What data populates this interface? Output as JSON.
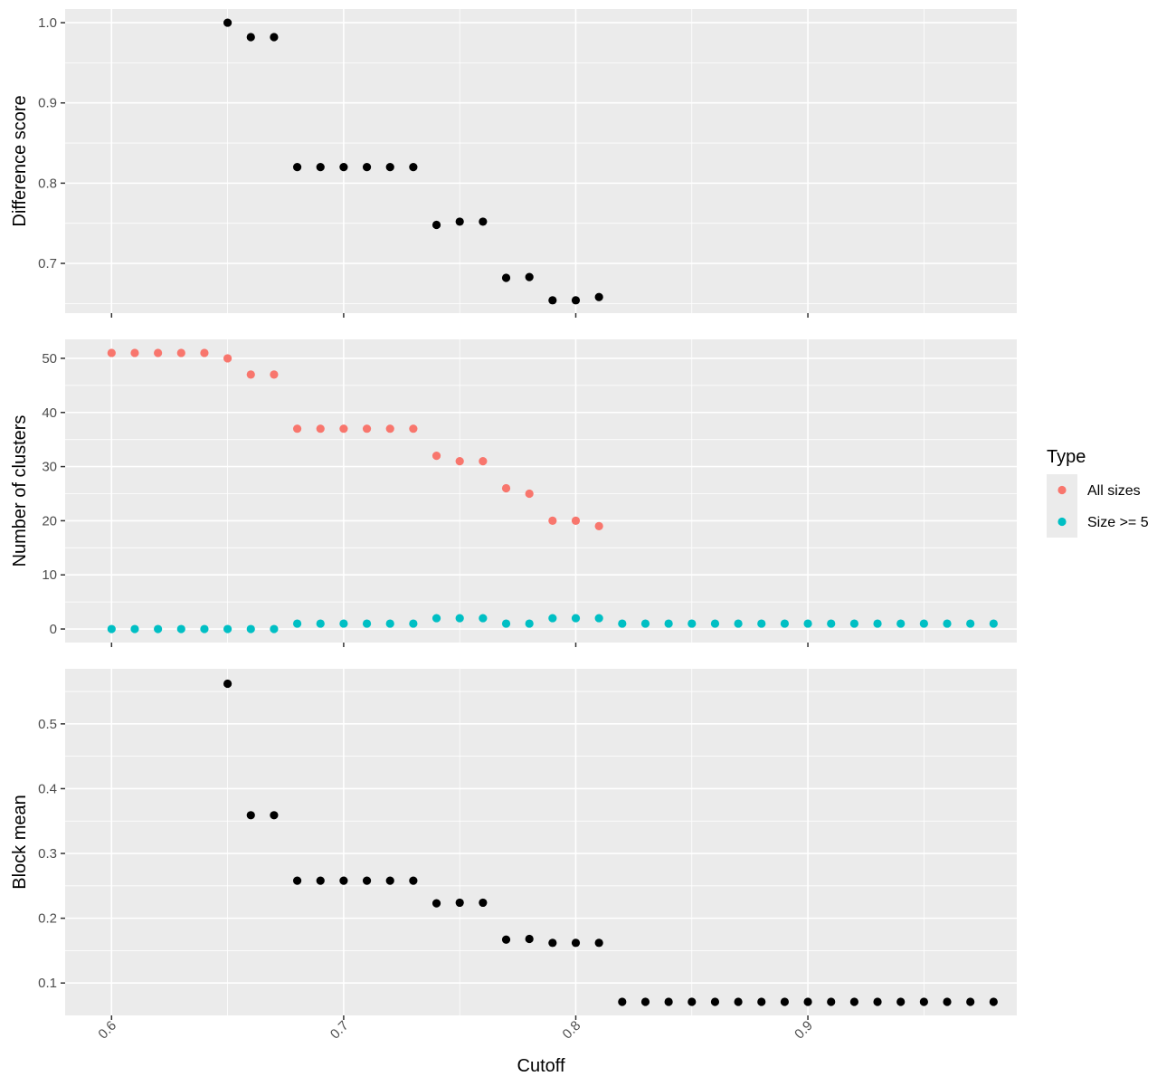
{
  "chart_data": [
    {
      "type": "scatter",
      "ylabel": "Difference score",
      "xlabel": "",
      "xlim": [
        0.58,
        0.99
      ],
      "ylim": [
        0.638,
        1.017
      ],
      "y_ticks": [
        0.7,
        0.8,
        0.9,
        1.0
      ],
      "y_tick_labels": [
        "0.7",
        "0.8",
        "0.9",
        "1.0"
      ],
      "grid": true,
      "series": [
        {
          "color": "#000000",
          "x": [
            0.65,
            0.66,
            0.67,
            0.68,
            0.69,
            0.7,
            0.71,
            0.72,
            0.73,
            0.74,
            0.75,
            0.76,
            0.77,
            0.78,
            0.79,
            0.8,
            0.81
          ],
          "y": [
            1.0,
            0.982,
            0.982,
            0.82,
            0.82,
            0.82,
            0.82,
            0.82,
            0.82,
            0.748,
            0.752,
            0.752,
            0.682,
            0.683,
            0.654,
            0.654,
            0.658
          ]
        }
      ]
    },
    {
      "type": "scatter",
      "ylabel": "Number of clusters",
      "xlabel": "",
      "xlim": [
        0.58,
        0.99
      ],
      "ylim": [
        -2.5,
        53.5
      ],
      "y_ticks": [
        0,
        10,
        20,
        30,
        40,
        50
      ],
      "y_tick_labels": [
        "0",
        "10",
        "20",
        "30",
        "40",
        "50"
      ],
      "grid": true,
      "legend": {
        "title": "Type",
        "position": "right",
        "entries": [
          {
            "label": "All sizes",
            "color": "#F8766D"
          },
          {
            "label": "Size >= 5",
            "color": "#00BFC4"
          }
        ]
      },
      "series": [
        {
          "name": "All sizes",
          "color": "#F8766D",
          "x": [
            0.6,
            0.61,
            0.62,
            0.63,
            0.64,
            0.65,
            0.66,
            0.67,
            0.68,
            0.69,
            0.7,
            0.71,
            0.72,
            0.73,
            0.74,
            0.75,
            0.76,
            0.77,
            0.78,
            0.79,
            0.8,
            0.81
          ],
          "y": [
            51,
            51,
            51,
            51,
            51,
            50,
            47,
            47,
            37,
            37,
            37,
            37,
            37,
            37,
            32,
            31,
            31,
            26,
            25,
            20,
            20,
            19
          ]
        },
        {
          "name": "Size >= 5",
          "color": "#00BFC4",
          "x": [
            0.6,
            0.61,
            0.62,
            0.63,
            0.64,
            0.65,
            0.66,
            0.67,
            0.68,
            0.69,
            0.7,
            0.71,
            0.72,
            0.73,
            0.74,
            0.75,
            0.76,
            0.77,
            0.78,
            0.79,
            0.8,
            0.81,
            0.82,
            0.83,
            0.84,
            0.85,
            0.86,
            0.87,
            0.88,
            0.89,
            0.9,
            0.91,
            0.92,
            0.93,
            0.94,
            0.95,
            0.96,
            0.97,
            0.98
          ],
          "y": [
            0,
            0,
            0,
            0,
            0,
            0,
            0,
            0,
            1,
            1,
            1,
            1,
            1,
            1,
            2,
            2,
            2,
            1,
            1,
            2,
            2,
            2,
            1,
            1,
            1,
            1,
            1,
            1,
            1,
            1,
            1,
            1,
            1,
            1,
            1,
            1,
            1,
            1,
            1
          ]
        }
      ]
    },
    {
      "type": "scatter",
      "ylabel": "Block mean",
      "xlabel": "Cutoff",
      "xlim": [
        0.58,
        0.99
      ],
      "x_ticks": [
        0.6,
        0.7,
        0.8,
        0.9
      ],
      "x_tick_labels": [
        "0.6",
        "0.7",
        "0.8",
        "0.9"
      ],
      "ylim": [
        0.05,
        0.585
      ],
      "y_ticks": [
        0.1,
        0.2,
        0.3,
        0.4,
        0.5
      ],
      "y_tick_labels": [
        "0.1",
        "0.2",
        "0.3",
        "0.4",
        "0.5"
      ],
      "grid": true,
      "series": [
        {
          "color": "#000000",
          "x": [
            0.65,
            0.66,
            0.67,
            0.68,
            0.69,
            0.7,
            0.71,
            0.72,
            0.73,
            0.74,
            0.75,
            0.76,
            0.77,
            0.78,
            0.79,
            0.8,
            0.81,
            0.82,
            0.83,
            0.84,
            0.85,
            0.86,
            0.87,
            0.88,
            0.89,
            0.9,
            0.91,
            0.92,
            0.93,
            0.94,
            0.95,
            0.96,
            0.97,
            0.98
          ],
          "y": [
            0.562,
            0.359,
            0.359,
            0.258,
            0.258,
            0.258,
            0.258,
            0.258,
            0.258,
            0.223,
            0.224,
            0.224,
            0.167,
            0.168,
            0.162,
            0.162,
            0.162,
            0.071,
            0.071,
            0.071,
            0.071,
            0.071,
            0.071,
            0.071,
            0.071,
            0.071,
            0.071,
            0.071,
            0.071,
            0.071,
            0.071,
            0.071,
            0.071,
            0.071
          ]
        }
      ]
    }
  ]
}
